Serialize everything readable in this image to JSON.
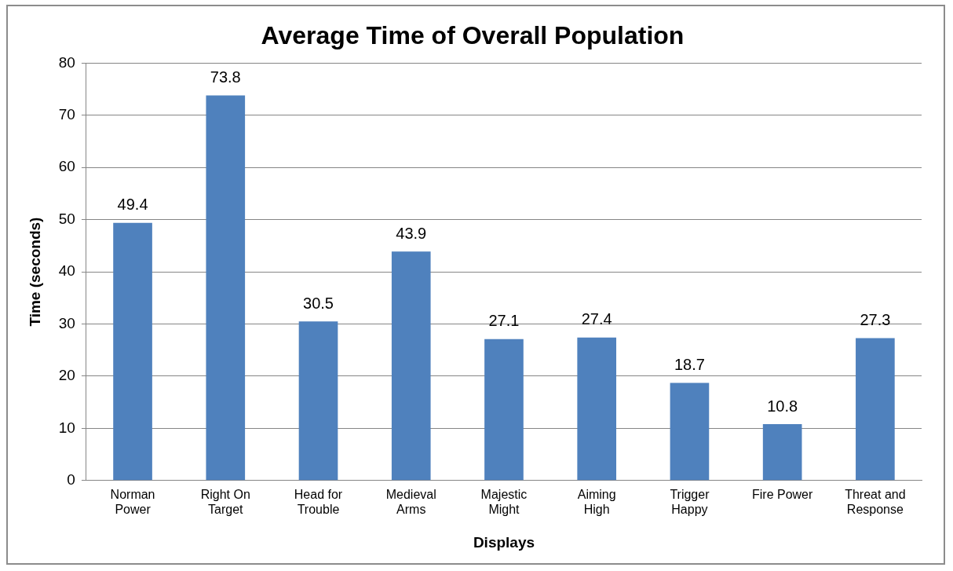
{
  "chart_data": {
    "type": "bar",
    "title": "Average Time of Overall Population",
    "xlabel": "Displays",
    "ylabel": "Time (seconds)",
    "categories": [
      "Norman Power",
      "Right On Target",
      "Head for Trouble",
      "Medieval Arms",
      "Majestic Might",
      "Aiming High",
      "Trigger Happy",
      "Fire Power",
      "Threat and Response"
    ],
    "values": [
      49.4,
      73.8,
      30.5,
      43.9,
      27.1,
      27.4,
      18.7,
      10.8,
      27.3
    ],
    "color": "#4f81bd",
    "ylim": [
      0,
      80
    ],
    "yticks": [
      0,
      10,
      20,
      30,
      40,
      50,
      60,
      70,
      80
    ],
    "grid": "y",
    "legend": false,
    "data_labels": true
  }
}
